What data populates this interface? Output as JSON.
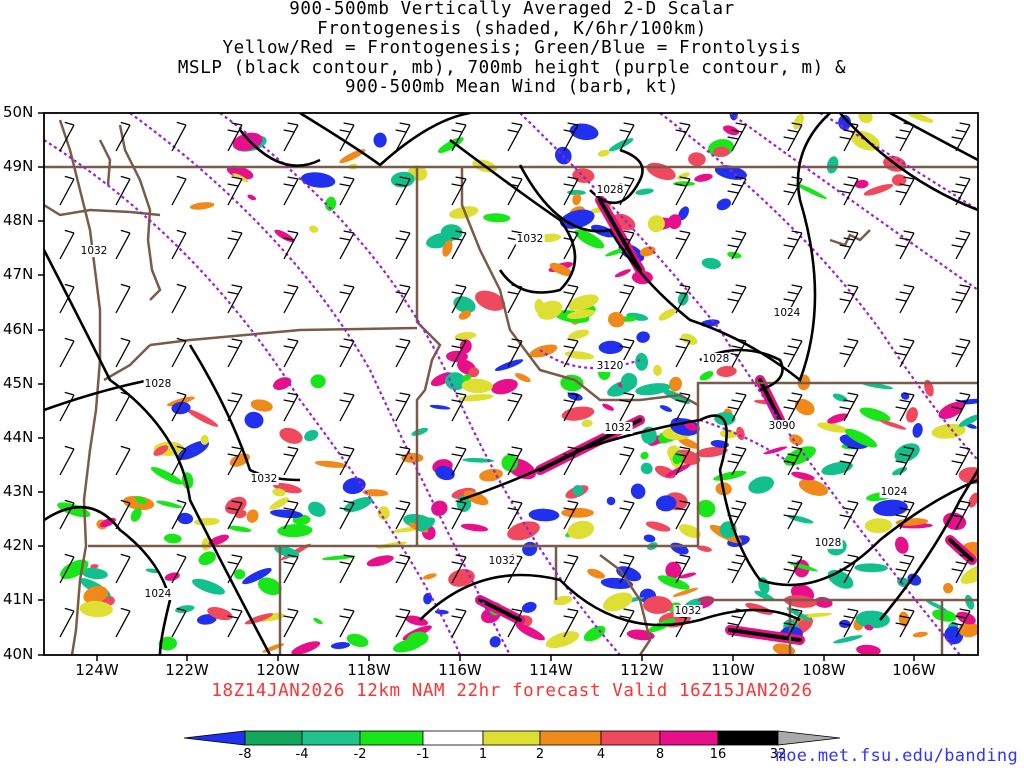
{
  "title_lines": [
    "900-500mb Vertically Averaged 2-D Scalar",
    "Frontogenesis (shaded, K/6hr/100km)",
    "Yellow/Red = Frontogenesis;  Green/Blue = Frontolysis",
    "MSLP (black contour, mb), 700mb height (purple contour, m) &",
    "900-500mb Mean Wind (barb, kt)"
  ],
  "subtitle": "18Z14JAN2026 12km NAM 22hr forecast Valid 16Z15JAN2026",
  "credit": "moe.met.fsu.edu/banding",
  "lat_labels": [
    "50N",
    "49N",
    "48N",
    "47N",
    "46N",
    "45N",
    "44N",
    "43N",
    "42N",
    "41N",
    "40N"
  ],
  "lon_labels": [
    "124W",
    "122W",
    "120W",
    "118W",
    "116W",
    "114W",
    "112W",
    "110W",
    "108W",
    "106W"
  ],
  "colorbar": {
    "labels": [
      "-8",
      "-4",
      "-2",
      "-1",
      "1",
      "2",
      "4",
      "8",
      "16",
      "32"
    ],
    "colors": [
      "#2030ee",
      "#12a85c",
      "#1fc38d",
      "#17c9a8",
      "#19e619",
      "#ffffff",
      "#dede33",
      "#ef8a1a",
      "#f0485c",
      "#e8108a",
      "#000000",
      "#aaaaaa"
    ]
  },
  "colors": {
    "frontolysis_strong": "#2030ee",
    "frontolysis_medium": "#12c08e",
    "frontolysis_weak": "#19e619",
    "frontogenesis_weak": "#dede33",
    "frontogenesis_medium": "#ef8a1a",
    "frontogenesis_strong": "#f0485c",
    "frontogenesis_very_strong": "#e8108a",
    "frontogenesis_extreme": "#000000",
    "mslp_contour": "#000000",
    "height_contour": "#9a22cc",
    "borders": "#7a5a48"
  },
  "mslp_labels": [
    "1032",
    "1028",
    "1028",
    "1024",
    "1032",
    "1032",
    "1032",
    "1028",
    "1024",
    "1028",
    "1032",
    "1024",
    "1032"
  ],
  "height_labels": [
    "3120",
    "3090"
  ]
}
